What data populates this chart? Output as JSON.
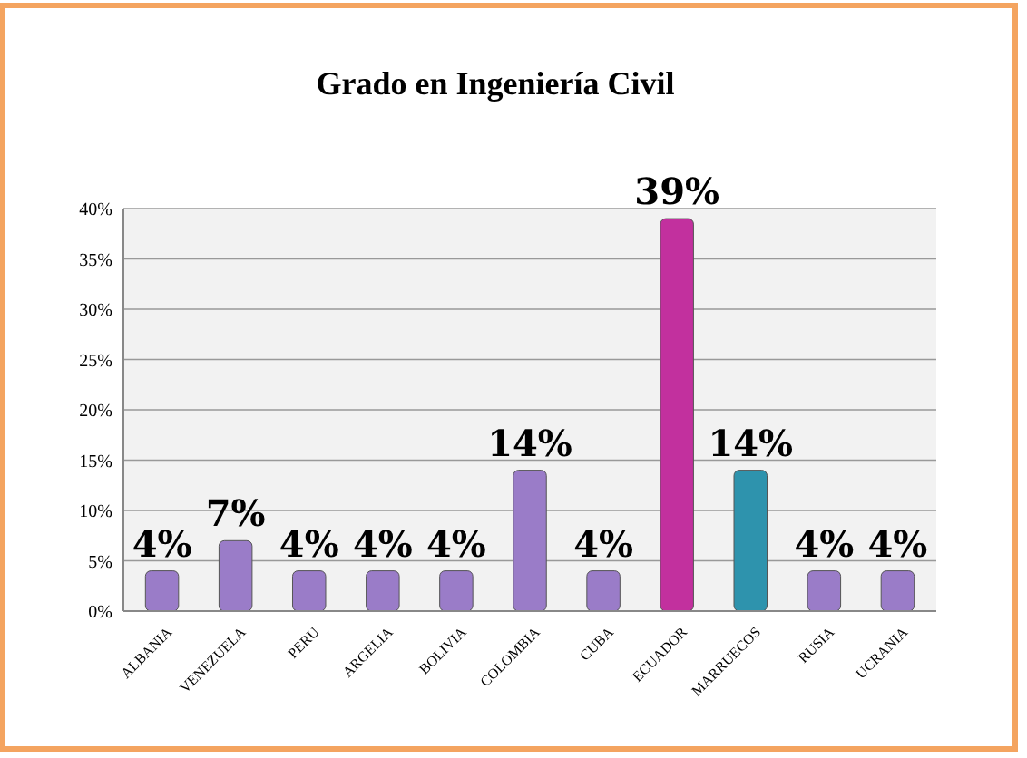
{
  "chart_data": {
    "type": "bar",
    "title": "Grado en Ingeniería Civil",
    "categories": [
      "ALBANIA",
      "VENEZUELA",
      "PERU",
      "ARGELIA",
      "BOLIVIA",
      "COLOMBIA",
      "CUBA",
      "ECUADOR",
      "MARRUECOS",
      "RUSIA",
      "UCRANIA"
    ],
    "values": [
      4,
      7,
      4,
      4,
      4,
      14,
      4,
      39,
      14,
      4,
      4
    ],
    "value_labels": [
      "4%",
      "7%",
      "4%",
      "4%",
      "4%",
      "14%",
      "4%",
      "39%",
      "14%",
      "4%",
      "4%"
    ],
    "colors": [
      "#9a7cc8",
      "#9a7cc8",
      "#9a7cc8",
      "#9a7cc8",
      "#9a7cc8",
      "#9a7cc8",
      "#9a7cc8",
      "#c2309e",
      "#2e93ad",
      "#9a7cc8",
      "#9a7cc8"
    ],
    "ylim": [
      0,
      40
    ],
    "yticks": [
      {
        "value": 0,
        "label": "0%"
      },
      {
        "value": 5,
        "label": "5%"
      },
      {
        "value": 10,
        "label": "10%"
      },
      {
        "value": 15,
        "label": "15%"
      },
      {
        "value": 20,
        "label": "20%"
      },
      {
        "value": 25,
        "label": "25%"
      },
      {
        "value": 30,
        "label": "30%"
      },
      {
        "value": 35,
        "label": "35%"
      },
      {
        "value": 40,
        "label": "40%"
      }
    ],
    "grid": "y"
  }
}
